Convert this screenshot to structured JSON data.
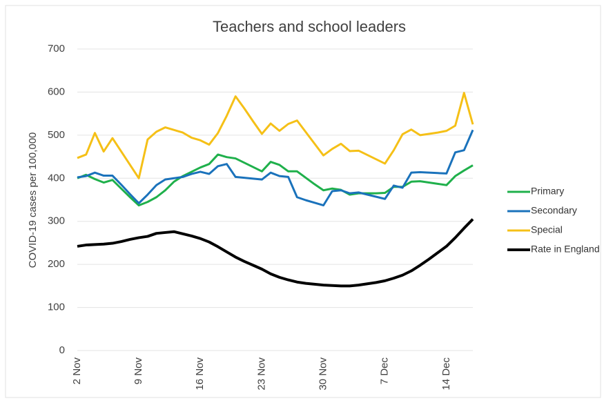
{
  "chart_data": {
    "type": "line",
    "title": "Teachers and school leaders",
    "y_label": "COVID-19 cases per 100,000",
    "categories": [
      "2 Nov",
      null,
      null,
      null,
      null,
      null,
      null,
      "9 Nov",
      null,
      null,
      null,
      null,
      null,
      null,
      "16 Nov",
      null,
      null,
      null,
      null,
      null,
      null,
      "23 Nov",
      null,
      null,
      null,
      null,
      null,
      null,
      "30 Nov",
      null,
      null,
      null,
      null,
      null,
      null,
      "7 Dec",
      null,
      null,
      null,
      null,
      null,
      null,
      "14 Dec",
      null,
      null,
      null
    ],
    "series": [
      {
        "name": "Rate in England",
        "color": "#000000",
        "values": [
          242,
          245,
          246,
          247,
          249,
          253,
          258,
          262,
          265,
          272,
          274,
          276,
          271,
          266,
          260,
          252,
          241,
          229,
          217,
          207,
          198,
          189,
          178,
          170,
          164,
          159,
          156,
          154,
          152,
          151,
          150,
          150,
          152,
          155,
          158,
          162,
          168,
          175,
          185,
          198,
          212,
          227,
          242,
          262,
          284,
          305
        ]
      },
      {
        "name": "Primary",
        "color": "#1fb04b",
        "values": [
          400,
          408,
          398,
          390,
          396,
          376,
          356,
          337,
          345,
          356,
          372,
          392,
          405,
          415,
          425,
          433,
          455,
          449,
          446,
          436,
          426,
          416,
          438,
          431,
          416,
          416,
          401,
          386,
          372,
          376,
          373,
          362,
          365,
          365,
          365,
          366,
          380,
          380,
          392,
          393,
          390,
          387,
          384,
          405,
          418,
          430
        ]
      },
      {
        "name": "Secondary",
        "color": "#1a72bb",
        "values": [
          402,
          405,
          413,
          406,
          406,
          385,
          363,
          342,
          362,
          384,
          397,
          400,
          403,
          410,
          415,
          410,
          428,
          433,
          403,
          401,
          399,
          397,
          413,
          405,
          403,
          356,
          349,
          343,
          337,
          370,
          372,
          365,
          367,
          362,
          357,
          352,
          383,
          378,
          413,
          414,
          413,
          412,
          411,
          460,
          465,
          512
        ]
      },
      {
        "name": "Special",
        "color": "#f5c017",
        "values": [
          447,
          455,
          505,
          462,
          493,
          462,
          431,
          400,
          490,
          508,
          518,
          512,
          506,
          494,
          488,
          478,
          505,
          545,
          590,
          562,
          532,
          503,
          527,
          510,
          526,
          534,
          507,
          480,
          453,
          468,
          480,
          463,
          464,
          454,
          444,
          434,
          465,
          502,
          513,
          500,
          503,
          506,
          510,
          522,
          598,
          525
        ]
      }
    ],
    "ylim": [
      0,
      700
    ],
    "yticks": [
      0,
      100,
      200,
      300,
      400,
      500,
      600,
      700
    ],
    "grid": true
  }
}
